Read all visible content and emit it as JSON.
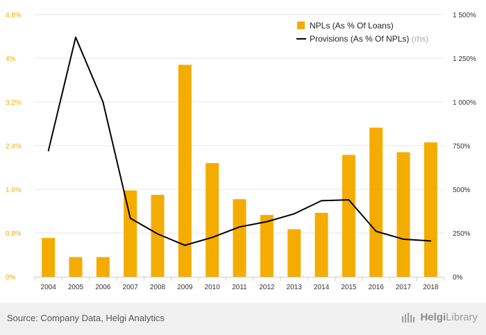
{
  "chart_data": {
    "type": "bar",
    "categories": [
      "2004",
      "2005",
      "2006",
      "2007",
      "2008",
      "2009",
      "2010",
      "2011",
      "2012",
      "2013",
      "2014",
      "2015",
      "2016",
      "2017",
      "2018"
    ],
    "series": [
      {
        "name": "NPLs (As % Of Loans)",
        "type": "bar",
        "axis": "left",
        "color": "#f5ac00",
        "values": [
          0.71,
          0.36,
          0.36,
          1.58,
          1.5,
          3.88,
          2.08,
          1.42,
          1.13,
          0.87,
          1.17,
          2.23,
          2.73,
          2.28,
          2.46
        ]
      },
      {
        "name": "Provisions (As % Of NPLs)",
        "name_suffix": "(rhs)",
        "type": "line",
        "axis": "right",
        "color": "#000000",
        "values": [
          720,
          1370,
          1000,
          335,
          245,
          180,
          225,
          285,
          315,
          360,
          435,
          440,
          260,
          215,
          205
        ]
      }
    ],
    "y_left": {
      "min": 0,
      "max": 4.8,
      "ticks": [
        "0%",
        "0.8%",
        "1.6%",
        "2.4%",
        "3.2%",
        "4%",
        "4.8%"
      ],
      "tick_values": [
        0,
        0.8,
        1.6,
        2.4,
        3.2,
        4.0,
        4.8
      ],
      "color": "#f5ac00"
    },
    "y_right": {
      "min": 0,
      "max": 1500,
      "ticks": [
        "0%",
        "250%",
        "500%",
        "750%",
        "1 000%",
        "1 250%",
        "1 500%"
      ],
      "tick_values": [
        0,
        250,
        500,
        750,
        1000,
        1250,
        1500
      ]
    },
    "grid": true,
    "legend_position": "top-right"
  },
  "footer": {
    "source": "Source: Company Data, Helgi Analytics",
    "brand_bold": "Helgi",
    "brand_rest": "Library"
  },
  "colors": {
    "bar": "#f5ac00",
    "line": "#000000",
    "grid": "#e6e6e6",
    "footer_bg": "#f0f0f0"
  }
}
